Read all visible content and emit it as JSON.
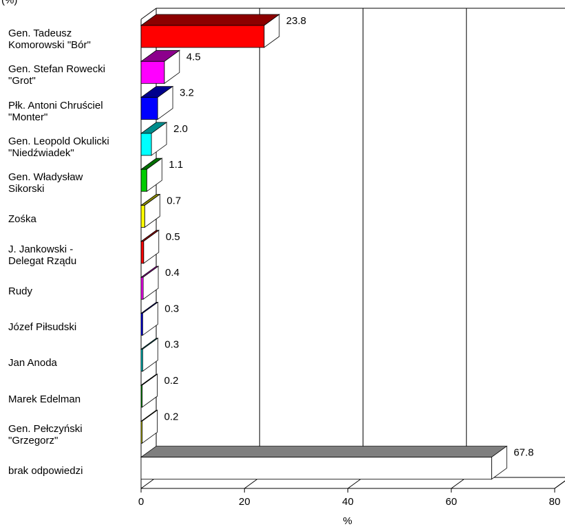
{
  "chart_data": {
    "type": "bar",
    "orientation": "horizontal",
    "title": "",
    "corner_label": "(%)",
    "xlabel": "%",
    "ylabel": "",
    "xlim": [
      0,
      80
    ],
    "x_ticks": [
      "0",
      "20",
      "40",
      "60",
      "80"
    ],
    "grid": true,
    "categories": [
      "Gen. Tadeusz\nKomorowski \"Bór\"",
      "Gen. Stefan Rowecki\n\"Grot\"",
      "Płk. Antoni Chruściel\n\"Monter\"",
      "Gen. Leopold Okulicki\n\"Niedźwiadek\"",
      "Gen. Władysław\nSikorski",
      "Zośka",
      "J. Jankowski -\nDelegat Rządu",
      "Rudy",
      "Józef Piłsudski",
      "Jan Anoda",
      "Marek Edelman",
      "Gen. Pełczyński\n\"Grzegorz\"",
      "brak odpowiedzi"
    ],
    "values": [
      23.8,
      4.5,
      3.2,
      2.0,
      1.1,
      0.7,
      0.5,
      0.4,
      0.3,
      0.3,
      0.2,
      0.2,
      67.8
    ],
    "value_labels": [
      "23.8",
      "4.5",
      "3.2",
      "2.0",
      "1.1",
      "0.7",
      "0.5",
      "0.4",
      "0.3",
      "0.3",
      "0.2",
      "0.2",
      "67.8"
    ],
    "bar_colors": [
      "#ff0000",
      "#ff00ff",
      "#0000ff",
      "#00ffff",
      "#00cc00",
      "#ffff00",
      "#ff0000",
      "#ff00ff",
      "#0000ff",
      "#00cccc",
      "#00cc00",
      "#ffff00",
      "#ffffff"
    ]
  }
}
